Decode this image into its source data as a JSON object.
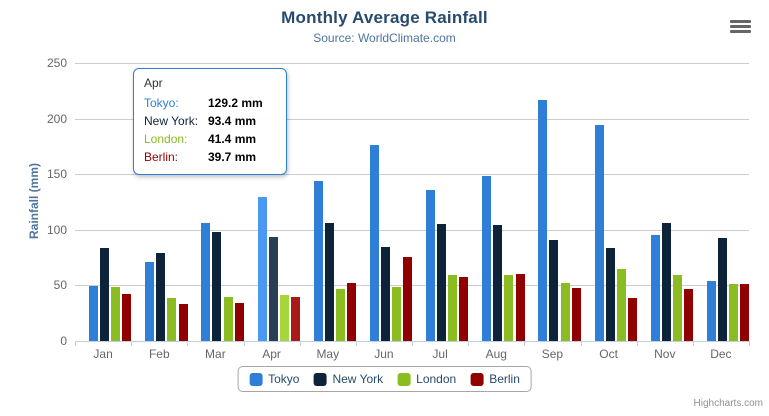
{
  "title": "Monthly Average Rainfall",
  "subtitle": "Source: WorldClimate.com",
  "credits": "Highcharts.com",
  "menu": {
    "icon": "hamburger-icon"
  },
  "colors": {
    "title": "#274b6d",
    "subtitle": "#4d759e",
    "axis_label": "#666666",
    "axis_title": "#4d759e",
    "gridline": "#cdcdcd",
    "axis_line": "#c0d0e0",
    "legend_text": "#274b6d",
    "tooltip_border": "#2f7ed8",
    "credits_text": "#909090"
  },
  "yaxis": {
    "title": "Rainfall (mm)",
    "ticks": [
      0,
      50,
      100,
      150,
      200,
      250
    ],
    "max": 250
  },
  "xaxis": {
    "categories": [
      "Jan",
      "Feb",
      "Mar",
      "Apr",
      "May",
      "Jun",
      "Jul",
      "Aug",
      "Sep",
      "Oct",
      "Nov",
      "Dec"
    ]
  },
  "chart_data": {
    "type": "bar",
    "orientation": "vertical",
    "title": "Monthly Average Rainfall",
    "subtitle": "Source: WorldClimate.com",
    "ylabel": "Rainfall (mm)",
    "ylim": [
      0,
      250
    ],
    "grid": true,
    "legend_position": "bottom",
    "categories": [
      "Jan",
      "Feb",
      "Mar",
      "Apr",
      "May",
      "Jun",
      "Jul",
      "Aug",
      "Sep",
      "Oct",
      "Nov",
      "Dec"
    ],
    "series": [
      {
        "name": "Tokyo",
        "color": "#2f7ed8",
        "hover_color": "#4a98f2",
        "values": [
          49.9,
          71.5,
          106.4,
          129.2,
          144.0,
          176.0,
          135.6,
          148.5,
          216.4,
          194.1,
          95.6,
          54.4
        ]
      },
      {
        "name": "New York",
        "color": "#0d233a",
        "hover_color": "#283e55",
        "values": [
          83.6,
          78.8,
          98.5,
          93.4,
          106.0,
          84.5,
          105.0,
          104.3,
          91.2,
          83.5,
          106.6,
          92.3
        ]
      },
      {
        "name": "London",
        "color": "#8bbc21",
        "hover_color": "#a5d63b",
        "values": [
          48.9,
          38.8,
          39.3,
          41.4,
          47.0,
          48.3,
          59.0,
          59.6,
          52.4,
          65.2,
          59.3,
          51.2
        ]
      },
      {
        "name": "Berlin",
        "color": "#910000",
        "hover_color": "#ab1a1a",
        "values": [
          42.4,
          33.2,
          34.5,
          39.7,
          52.6,
          75.5,
          57.4,
          60.4,
          47.6,
          39.1,
          46.8,
          51.1
        ]
      }
    ],
    "hovered_category": "Apr",
    "hovered_category_index": 3
  },
  "tooltip": {
    "header": "Apr",
    "rows": [
      {
        "label": "Tokyo:",
        "value": "129.2 mm",
        "color": "#2f7ed8"
      },
      {
        "label": "New York:",
        "value": "93.4 mm",
        "color": "#0d233a"
      },
      {
        "label": "London:",
        "value": "41.4 mm",
        "color": "#8bbc21"
      },
      {
        "label": "Berlin:",
        "value": "39.7 mm",
        "color": "#910000"
      }
    ]
  },
  "legend": {
    "items": [
      {
        "label": "Tokyo",
        "color": "#2f7ed8"
      },
      {
        "label": "New York",
        "color": "#0d233a"
      },
      {
        "label": "London",
        "color": "#8bbc21"
      },
      {
        "label": "Berlin",
        "color": "#910000"
      }
    ]
  }
}
